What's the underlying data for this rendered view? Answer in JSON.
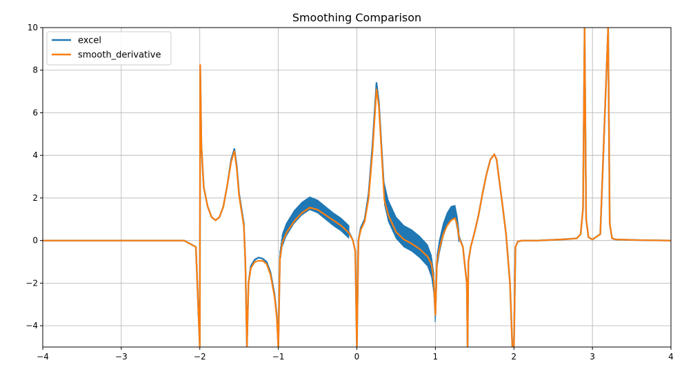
{
  "chart_data": {
    "type": "line",
    "title": "Smoothing Comparison",
    "xlabel": "",
    "ylabel": "",
    "xlim": [
      -4,
      4
    ],
    "ylim": [
      -5,
      10
    ],
    "x_ticks": [
      -4,
      -3,
      -2,
      -1,
      0,
      1,
      2,
      3,
      4
    ],
    "x_tick_labels": [
      "−4",
      "−3",
      "−2",
      "−1",
      "0",
      "1",
      "2",
      "3",
      "4"
    ],
    "y_ticks": [
      -4,
      -2,
      0,
      2,
      4,
      6,
      8,
      10
    ],
    "y_tick_labels": [
      "−4",
      "−2",
      "0",
      "2",
      "4",
      "6",
      "8",
      "10"
    ],
    "grid": true,
    "legend_position": "top-left",
    "series": [
      {
        "name": "excel",
        "color": "#1f77b4",
        "noise_band": [
          {
            "x": [
              -1.0,
              -0.1
            ],
            "amplitude": 0.3
          },
          {
            "x": [
              0.35,
              1.0
            ],
            "amplitude": 0.5
          },
          {
            "x": [
              1.0,
              1.3
            ],
            "amplitude": 0.3
          }
        ],
        "x": [
          -4,
          -2.2,
          -2.05,
          -2.0,
          -1.995,
          -1.98,
          -1.95,
          -1.9,
          -1.85,
          -1.8,
          -1.75,
          -1.7,
          -1.65,
          -1.6,
          -1.56,
          -1.53,
          -1.5,
          -1.47,
          -1.44,
          -1.42,
          -1.4,
          -1.38,
          -1.35,
          -1.3,
          -1.25,
          -1.2,
          -1.15,
          -1.1,
          -1.05,
          -1.02,
          -1.0,
          -0.98,
          -0.95,
          -0.9,
          -0.8,
          -0.7,
          -0.6,
          -0.5,
          -0.4,
          -0.3,
          -0.2,
          -0.1,
          -0.05,
          -0.02,
          0.0,
          0.02,
          0.05,
          0.1,
          0.15,
          0.2,
          0.25,
          0.28,
          0.32,
          0.35,
          0.4,
          0.5,
          0.6,
          0.7,
          0.8,
          0.9,
          0.95,
          0.98,
          1.0,
          1.02,
          1.05,
          1.1,
          1.15,
          1.2,
          1.25,
          1.28,
          1.3,
          1.35,
          1.4,
          1.41,
          1.42,
          1.45,
          1.5,
          1.55,
          1.6,
          1.65,
          1.7,
          1.75,
          1.78,
          1.8,
          1.85,
          1.9,
          1.95,
          1.98,
          2.0,
          2.02,
          2.05,
          2.1,
          2.3,
          2.6,
          2.8,
          2.85,
          2.88,
          2.9,
          2.92,
          2.95,
          3.0,
          3.1,
          3.2,
          3.22,
          3.25,
          3.3,
          3.6,
          4.0
        ],
        "y": [
          0,
          0,
          -0.3,
          -5,
          8.2,
          4.5,
          2.5,
          1.6,
          1.1,
          0.95,
          1.1,
          1.6,
          2.6,
          3.8,
          4.3,
          3.5,
          2.2,
          1.5,
          0.8,
          -1.0,
          -5,
          -2.0,
          -1.2,
          -0.9,
          -0.8,
          -0.85,
          -1.0,
          -1.5,
          -2.5,
          -3.5,
          -5,
          -0.8,
          0.0,
          0.5,
          1.1,
          1.5,
          1.75,
          1.6,
          1.3,
          1.0,
          0.75,
          0.4,
          0.0,
          -0.5,
          -5,
          0.0,
          0.6,
          1.0,
          2.2,
          4.5,
          7.4,
          6.5,
          4.0,
          2.2,
          1.4,
          0.6,
          0.2,
          0.0,
          -0.3,
          -0.7,
          -1.2,
          -2.0,
          -3.5,
          -1.0,
          -0.3,
          0.5,
          1.0,
          1.3,
          1.35,
          0.8,
          0.2,
          -0.3,
          -2.0,
          -5,
          -1.0,
          -0.3,
          0.4,
          1.2,
          2.2,
          3.1,
          3.8,
          4.05,
          3.8,
          3.2,
          1.8,
          0.3,
          -2.0,
          -5,
          -5,
          -0.3,
          -0.05,
          0,
          0,
          0.05,
          0.1,
          0.3,
          1.5,
          10,
          1.0,
          0.15,
          0.05,
          0.3,
          10,
          0.8,
          0.1,
          0.05,
          0.02,
          0
        ]
      },
      {
        "name": "smooth_derivative",
        "color": "#ff7f0e",
        "x": [
          -4,
          -2.2,
          -2.05,
          -2.0,
          -1.995,
          -1.98,
          -1.95,
          -1.9,
          -1.85,
          -1.8,
          -1.75,
          -1.7,
          -1.65,
          -1.6,
          -1.56,
          -1.53,
          -1.5,
          -1.47,
          -1.44,
          -1.42,
          -1.4,
          -1.38,
          -1.35,
          -1.3,
          -1.25,
          -1.2,
          -1.15,
          -1.1,
          -1.05,
          -1.02,
          -1.0,
          -0.98,
          -0.95,
          -0.9,
          -0.8,
          -0.7,
          -0.6,
          -0.5,
          -0.4,
          -0.3,
          -0.2,
          -0.1,
          -0.05,
          -0.02,
          0.0,
          0.02,
          0.05,
          0.1,
          0.15,
          0.2,
          0.25,
          0.28,
          0.32,
          0.35,
          0.4,
          0.5,
          0.6,
          0.7,
          0.8,
          0.9,
          0.95,
          0.98,
          1.0,
          1.02,
          1.05,
          1.1,
          1.15,
          1.2,
          1.25,
          1.28,
          1.3,
          1.35,
          1.4,
          1.41,
          1.42,
          1.45,
          1.5,
          1.55,
          1.6,
          1.65,
          1.7,
          1.75,
          1.78,
          1.8,
          1.85,
          1.9,
          1.95,
          1.98,
          2.0,
          2.02,
          2.05,
          2.1,
          2.3,
          2.6,
          2.8,
          2.85,
          2.88,
          2.9,
          2.92,
          2.95,
          3.0,
          3.1,
          3.2,
          3.22,
          3.25,
          3.3,
          3.6,
          4.0
        ],
        "y": [
          0,
          0,
          -0.3,
          -5,
          8.25,
          4.5,
          2.5,
          1.6,
          1.1,
          0.95,
          1.1,
          1.6,
          2.6,
          3.7,
          4.2,
          3.4,
          2.1,
          1.4,
          0.7,
          -1.0,
          -5,
          -2.0,
          -1.3,
          -1.0,
          -0.95,
          -0.95,
          -1.1,
          -1.6,
          -2.6,
          -3.6,
          -5,
          -0.9,
          -0.1,
          0.35,
          0.9,
          1.3,
          1.55,
          1.45,
          1.2,
          0.95,
          0.7,
          0.35,
          0.0,
          -0.5,
          -5,
          0.0,
          0.5,
          0.9,
          2.0,
          4.2,
          7.1,
          6.3,
          3.8,
          1.9,
          1.2,
          0.4,
          0.05,
          -0.15,
          -0.4,
          -0.75,
          -1.1,
          -1.9,
          -3.5,
          -1.0,
          -0.4,
          0.3,
          0.7,
          0.95,
          1.05,
          0.7,
          0.15,
          -0.3,
          -2.0,
          -5,
          -1.0,
          -0.3,
          0.4,
          1.2,
          2.2,
          3.1,
          3.8,
          4.05,
          3.8,
          3.2,
          1.8,
          0.3,
          -2.0,
          -5,
          -5,
          -0.3,
          -0.05,
          0,
          0,
          0.05,
          0.1,
          0.3,
          1.5,
          10,
          1.0,
          0.15,
          0.05,
          0.3,
          10,
          0.8,
          0.1,
          0.05,
          0.02,
          0
        ]
      }
    ]
  }
}
